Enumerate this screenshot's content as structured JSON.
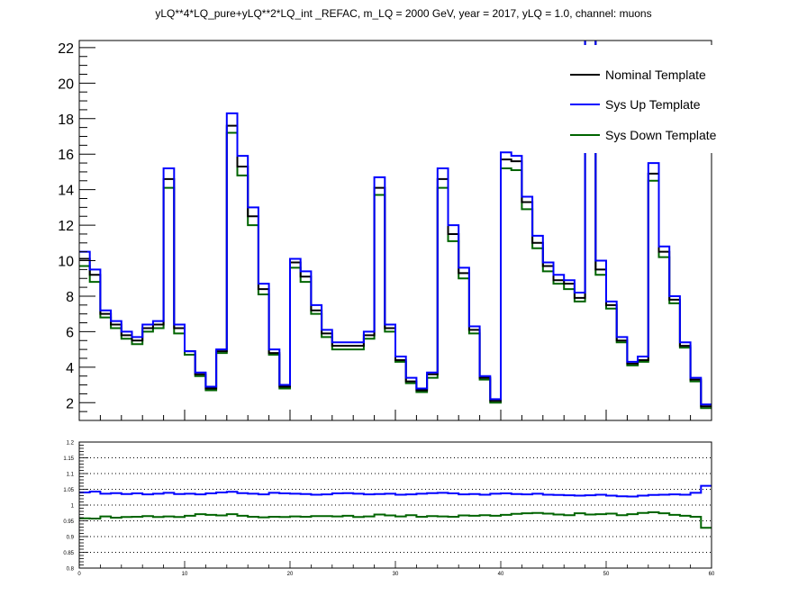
{
  "title": "yLQ**4*LQ_pure+yLQ**2*LQ_int _REFAC, m_LQ = 2000 GeV, year = 2017, yLQ = 1.0, channel: muons",
  "chart_data": [
    {
      "type": "line",
      "panel": "main",
      "step": true,
      "xlim": [
        0,
        60
      ],
      "ylim": [
        1,
        22.4
      ],
      "yticks": [
        2,
        4,
        6,
        8,
        10,
        12,
        14,
        16,
        18,
        20,
        22
      ],
      "legend": [
        "Nominal Template",
        "Sys Up Template",
        "Sys Down Template"
      ],
      "legend_position": "top-right",
      "series": [
        {
          "name": "Nominal Template",
          "color": "#000000",
          "values": [
            10.1,
            9.2,
            7.0,
            6.4,
            5.8,
            5.5,
            6.2,
            6.4,
            14.6,
            6.2,
            4.9,
            3.6,
            2.8,
            4.9,
            17.6,
            15.3,
            12.5,
            8.4,
            4.8,
            2.9,
            9.9,
            9.1,
            7.2,
            5.9,
            5.2,
            5.2,
            5.2,
            5.8,
            14.1,
            6.2,
            4.4,
            3.2,
            2.7,
            3.6,
            14.6,
            11.5,
            9.3,
            6.1,
            3.4,
            2.1,
            15.7,
            15.6,
            13.3,
            11.0,
            9.7,
            8.9,
            8.7,
            7.9,
            28.0,
            9.5,
            7.5,
            5.5,
            4.2,
            4.4,
            14.9,
            10.5,
            7.8,
            5.2,
            3.3,
            1.8
          ]
        },
        {
          "name": "Sys Up Template",
          "color": "#0000ff",
          "values": [
            10.5,
            9.5,
            7.2,
            6.6,
            6.0,
            5.7,
            6.4,
            6.6,
            15.2,
            6.4,
            4.9,
            3.7,
            2.9,
            5.0,
            18.3,
            15.9,
            13.0,
            8.7,
            5.0,
            3.0,
            10.1,
            9.4,
            7.5,
            6.1,
            5.4,
            5.4,
            5.4,
            6.0,
            14.7,
            6.4,
            4.6,
            3.4,
            2.8,
            3.7,
            15.2,
            12.0,
            9.6,
            6.3,
            3.5,
            2.2,
            16.1,
            15.9,
            13.6,
            11.4,
            9.9,
            9.2,
            8.9,
            8.2,
            28.5,
            10.0,
            7.7,
            5.7,
            4.3,
            4.6,
            15.5,
            10.8,
            8.0,
            5.4,
            3.4,
            1.9
          ]
        },
        {
          "name": "Sys Down Template",
          "color": "#006400",
          "values": [
            9.7,
            8.8,
            6.8,
            6.2,
            5.6,
            5.3,
            6.0,
            6.2,
            14.1,
            5.9,
            4.7,
            3.5,
            2.7,
            4.8,
            17.2,
            14.8,
            12.0,
            8.1,
            4.7,
            2.8,
            9.6,
            8.8,
            7.0,
            5.7,
            5.0,
            5.0,
            5.0,
            5.6,
            13.7,
            6.0,
            4.3,
            3.1,
            2.6,
            3.4,
            14.1,
            11.1,
            9.0,
            5.9,
            3.3,
            2.0,
            15.2,
            15.1,
            12.9,
            10.7,
            9.4,
            8.7,
            8.4,
            7.7,
            27.5,
            9.2,
            7.3,
            5.4,
            4.1,
            4.3,
            14.5,
            10.2,
            7.6,
            5.1,
            3.2,
            1.7
          ]
        }
      ]
    },
    {
      "type": "line",
      "panel": "ratio",
      "step": true,
      "xlim": [
        0,
        60
      ],
      "ylim": [
        0.8,
        1.2
      ],
      "xticks": [
        0,
        10,
        20,
        30,
        40,
        50,
        60
      ],
      "yticks": [
        0.8,
        0.85,
        0.9,
        0.95,
        1,
        1.05,
        1.1,
        1.15,
        1.2
      ],
      "grid_y": [
        0.85,
        0.9,
        0.95,
        1.0,
        1.05,
        1.1,
        1.15
      ],
      "series": [
        {
          "name": "Sys Up Template",
          "color": "#0000ff",
          "values": [
            1.04,
            1.043,
            1.036,
            1.038,
            1.035,
            1.037,
            1.034,
            1.036,
            1.039,
            1.035,
            1.036,
            1.034,
            1.037,
            1.04,
            1.042,
            1.038,
            1.036,
            1.034,
            1.039,
            1.037,
            1.036,
            1.035,
            1.033,
            1.034,
            1.037,
            1.038,
            1.036,
            1.034,
            1.035,
            1.036,
            1.033,
            1.034,
            1.036,
            1.038,
            1.039,
            1.037,
            1.034,
            1.035,
            1.033,
            1.036,
            1.037,
            1.035,
            1.034,
            1.036,
            1.033,
            1.032,
            1.031,
            1.03,
            1.031,
            1.033,
            1.03,
            1.028,
            1.027,
            1.03,
            1.032,
            1.033,
            1.034,
            1.033,
            1.039,
            1.061
          ]
        },
        {
          "name": "Sys Down Template",
          "color": "#006400",
          "values": [
            0.958,
            0.957,
            0.964,
            0.96,
            0.962,
            0.963,
            0.965,
            0.962,
            0.964,
            0.962,
            0.966,
            0.971,
            0.969,
            0.967,
            0.971,
            0.966,
            0.963,
            0.961,
            0.963,
            0.962,
            0.964,
            0.963,
            0.965,
            0.965,
            0.964,
            0.966,
            0.962,
            0.964,
            0.97,
            0.967,
            0.964,
            0.968,
            0.963,
            0.965,
            0.964,
            0.963,
            0.967,
            0.966,
            0.968,
            0.966,
            0.969,
            0.972,
            0.974,
            0.975,
            0.973,
            0.97,
            0.968,
            0.974,
            0.97,
            0.971,
            0.973,
            0.968,
            0.971,
            0.975,
            0.977,
            0.974,
            0.969,
            0.966,
            0.963,
            0.928
          ]
        }
      ]
    }
  ]
}
